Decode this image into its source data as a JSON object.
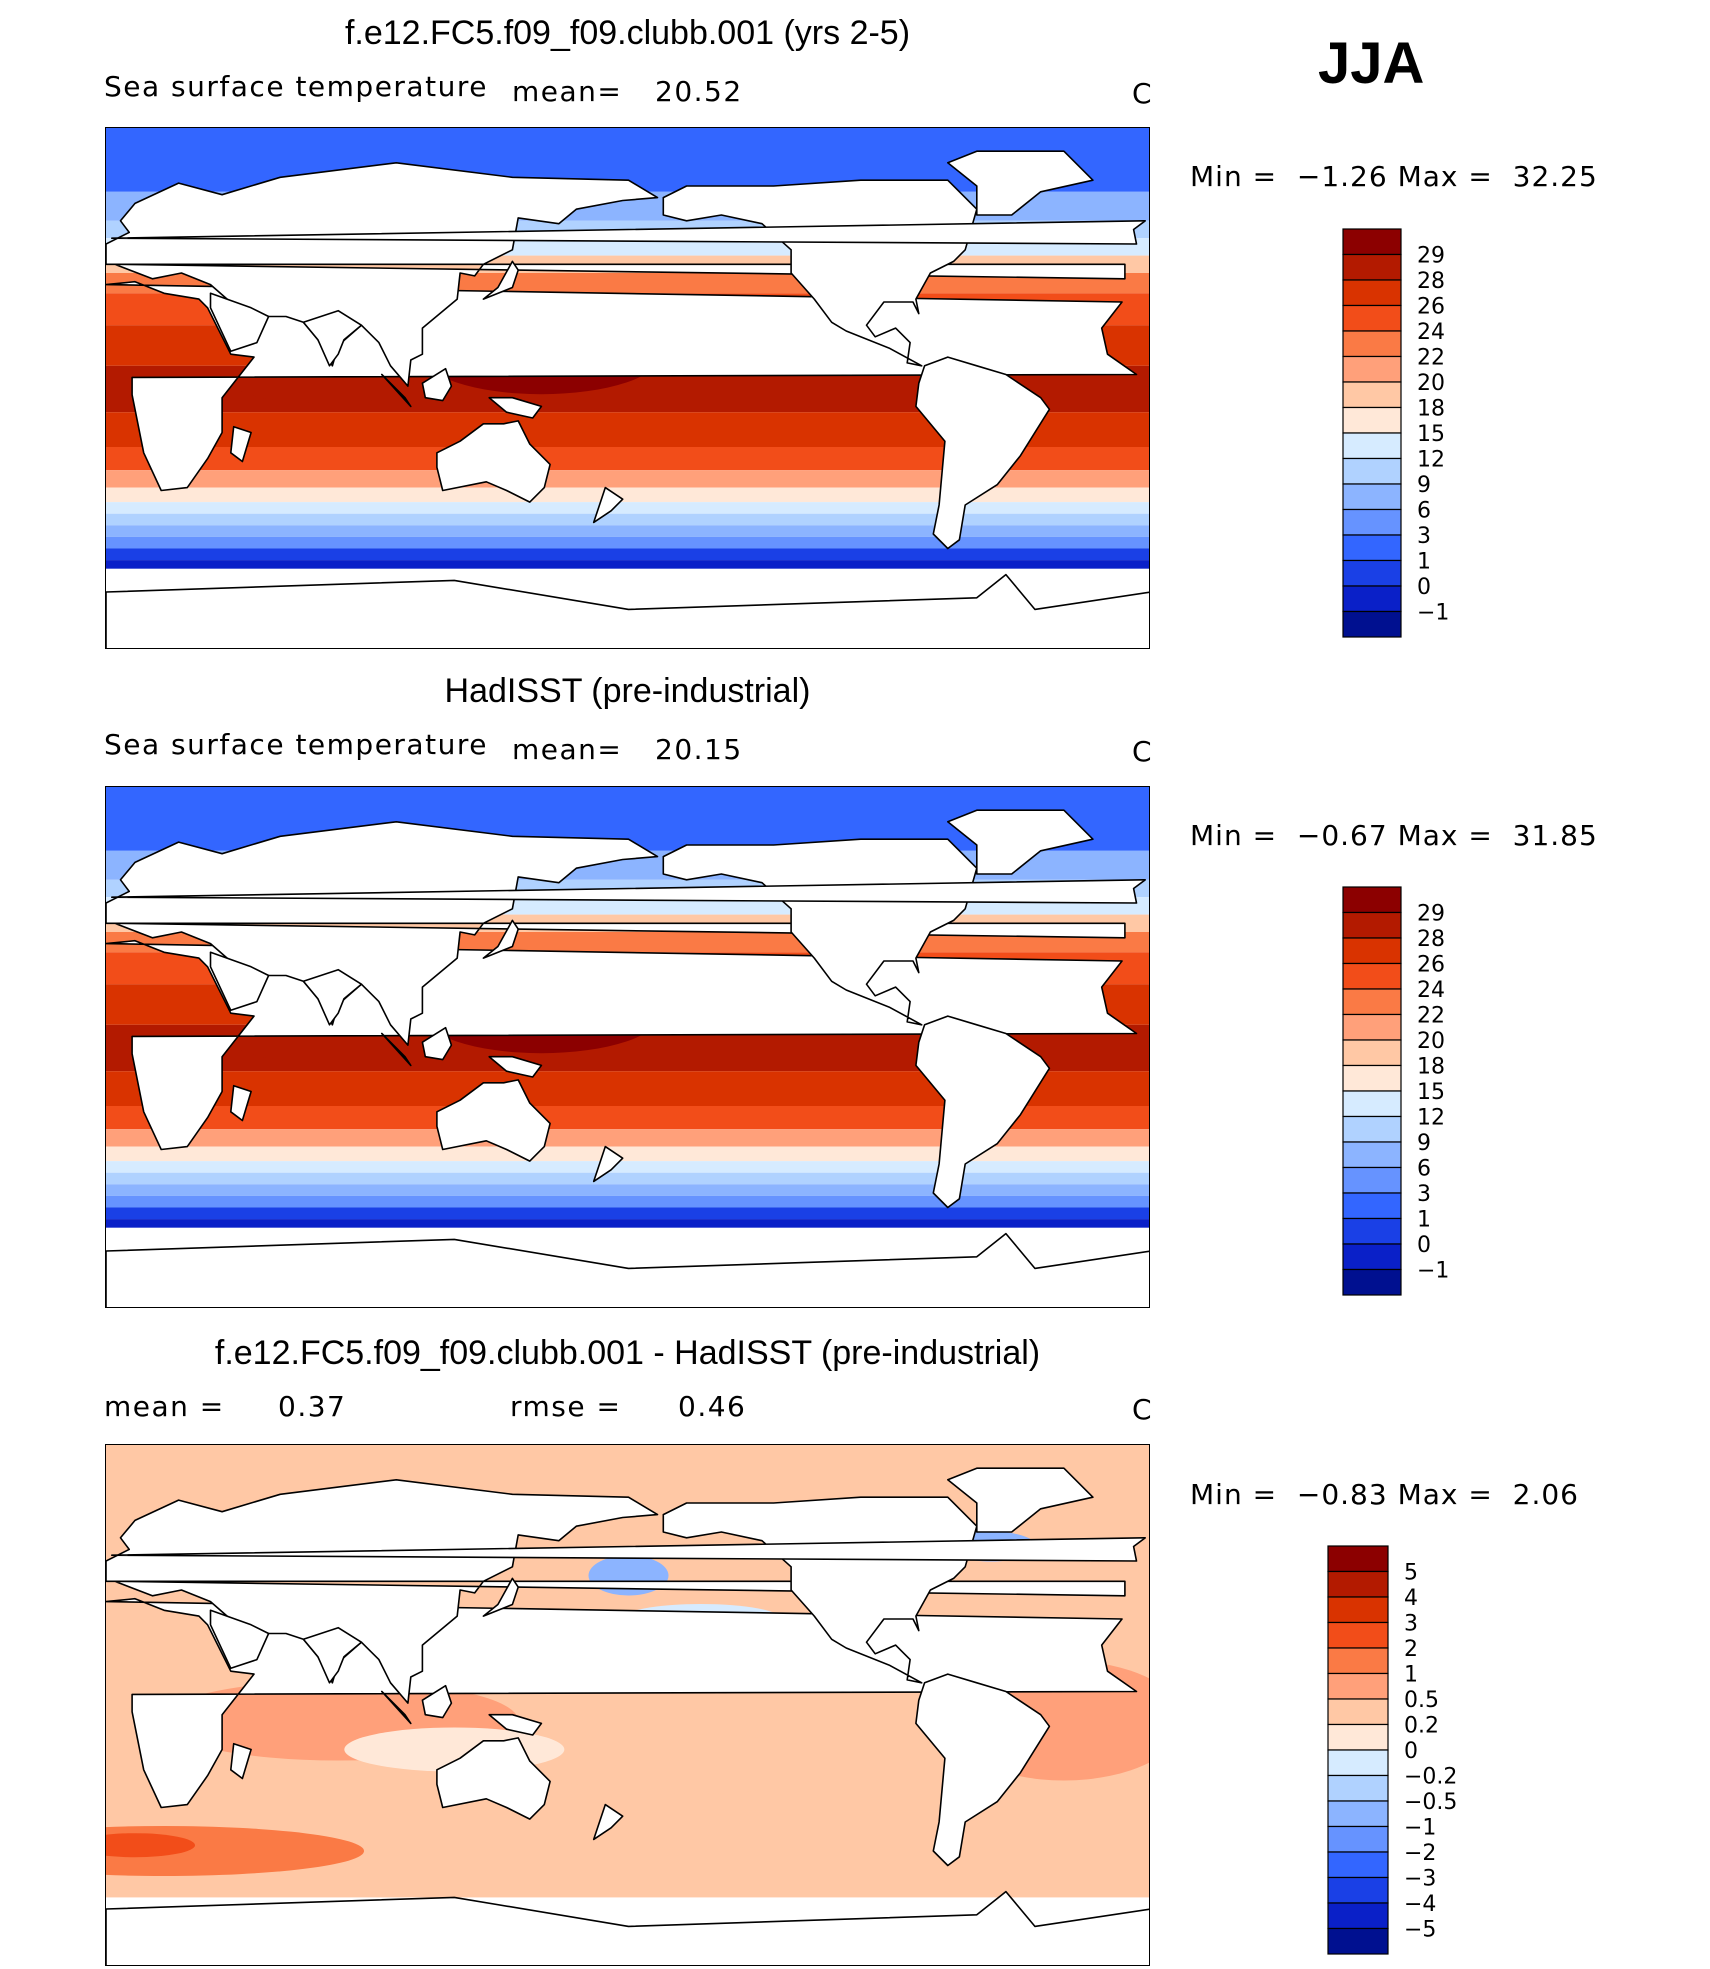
{
  "season": "JJA",
  "units": "C",
  "land_color": "#ffffff",
  "coast_color": "#000000",
  "chart_data": [
    {
      "type": "heatmap",
      "title": "f.e12.FC5.f09_f09.clubb.001 (yrs 2-5)",
      "variable": "Sea surface temperature",
      "mean_label": "mean=",
      "mean": "20.52",
      "min_label": "Min =",
      "min": "−1.26",
      "max_label": "Max =",
      "max": "32.25",
      "levels": [
        "29",
        "28",
        "26",
        "24",
        "22",
        "20",
        "18",
        "15",
        "12",
        "9",
        "6",
        "3",
        "1",
        "0",
        "−1"
      ],
      "colors": [
        "#8c0000",
        "#b31a00",
        "#d93300",
        "#f24d19",
        "#fa7a45",
        "#ffa07a",
        "#ffc8a5",
        "#ffe8d8",
        "#d6ebff",
        "#b0d2ff",
        "#8cb4ff",
        "#6693ff",
        "#3366ff",
        "#1a40e6",
        "#0a20c8",
        "#001090"
      ]
    },
    {
      "type": "heatmap",
      "title": "HadISST (pre-industrial)",
      "variable": "Sea surface temperature",
      "mean_label": "mean=",
      "mean": "20.15",
      "min_label": "Min =",
      "min": "−0.67",
      "max_label": "Max =",
      "max": "31.85",
      "levels": [
        "29",
        "28",
        "26",
        "24",
        "22",
        "20",
        "18",
        "15",
        "12",
        "9",
        "6",
        "3",
        "1",
        "0",
        "−1"
      ],
      "colors": [
        "#8c0000",
        "#b31a00",
        "#d93300",
        "#f24d19",
        "#fa7a45",
        "#ffa07a",
        "#ffc8a5",
        "#ffe8d8",
        "#d6ebff",
        "#b0d2ff",
        "#8cb4ff",
        "#6693ff",
        "#3366ff",
        "#1a40e6",
        "#0a20c8",
        "#001090"
      ]
    },
    {
      "type": "heatmap",
      "title": "f.e12.FC5.f09_f09.clubb.001 - HadISST (pre-industrial)",
      "mean_label": "mean =",
      "mean": "0.37",
      "rmse_label": "rmse =",
      "rmse": "0.46",
      "min_label": "Min =",
      "min": "−0.83",
      "max_label": "Max =",
      "max": "2.06",
      "levels": [
        "5",
        "4",
        "3",
        "2",
        "1",
        "0.5",
        "0.2",
        "0",
        "−0.2",
        "−0.5",
        "−1",
        "−2",
        "−3",
        "−4",
        "−5"
      ],
      "colors": [
        "#8c0000",
        "#b31a00",
        "#d93300",
        "#f24d19",
        "#fa7a45",
        "#ffa07a",
        "#ffc8a5",
        "#ffe8d8",
        "#d6ebff",
        "#b0d2ff",
        "#8cb4ff",
        "#6693ff",
        "#3366ff",
        "#1a40e6",
        "#0a20c8",
        "#001090"
      ]
    }
  ]
}
